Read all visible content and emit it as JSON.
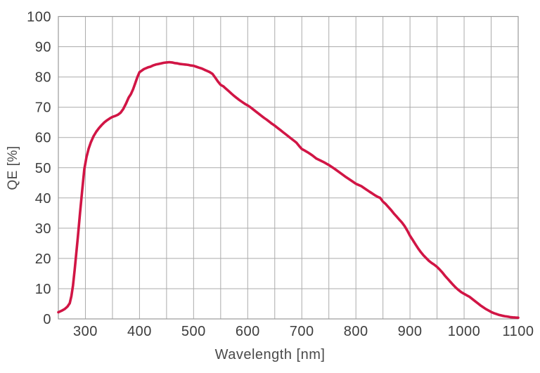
{
  "chart_data": {
    "type": "line",
    "title": "",
    "xlabel": "Wavelength [nm]",
    "ylabel": "QE [%]",
    "xlim": [
      250,
      1100
    ],
    "ylim": [
      0,
      100
    ],
    "x_tick_labels": [
      300,
      400,
      500,
      600,
      700,
      800,
      900,
      1000,
      1100
    ],
    "x_minor_grid_step": 50,
    "y_tick_labels": [
      0,
      10,
      20,
      30,
      40,
      50,
      60,
      70,
      80,
      90,
      100
    ],
    "grid": "vertical every 50 nm, horizontal every 10 %",
    "legend": "none",
    "colors": {
      "line": "#d11545",
      "grid": "#ababab",
      "border": "#9a9a9a",
      "tick_text": "#3d3d3d"
    },
    "series": [
      {
        "name": "QE",
        "points": [
          [
            250,
            2.2
          ],
          [
            256,
            2.7
          ],
          [
            262,
            3.3
          ],
          [
            267,
            4.1
          ],
          [
            271,
            5.2
          ],
          [
            274,
            7.5
          ],
          [
            277,
            11
          ],
          [
            280,
            16
          ],
          [
            283,
            21.5
          ],
          [
            286,
            27
          ],
          [
            290,
            35
          ],
          [
            294,
            42.5
          ],
          [
            298,
            49.5
          ],
          [
            302,
            53.5
          ],
          [
            306,
            56.3
          ],
          [
            310,
            58.4
          ],
          [
            315,
            60.4
          ],
          [
            320,
            61.9
          ],
          [
            325,
            63.1
          ],
          [
            330,
            64.1
          ],
          [
            335,
            65.0
          ],
          [
            340,
            65.7
          ],
          [
            345,
            66.3
          ],
          [
            350,
            66.8
          ],
          [
            355,
            67.1
          ],
          [
            360,
            67.5
          ],
          [
            365,
            68.2
          ],
          [
            370,
            69.4
          ],
          [
            375,
            71.2
          ],
          [
            380,
            73.2
          ],
          [
            384,
            74.3
          ],
          [
            388,
            75.9
          ],
          [
            392,
            77.9
          ],
          [
            396,
            79.9
          ],
          [
            400,
            81.6
          ],
          [
            404,
            82.1
          ],
          [
            408,
            82.6
          ],
          [
            412,
            82.9
          ],
          [
            416,
            83.2
          ],
          [
            420,
            83.4
          ],
          [
            425,
            83.8
          ],
          [
            430,
            84.1
          ],
          [
            435,
            84.3
          ],
          [
            440,
            84.5
          ],
          [
            445,
            84.7
          ],
          [
            450,
            84.8
          ],
          [
            455,
            84.9
          ],
          [
            460,
            84.8
          ],
          [
            465,
            84.6
          ],
          [
            470,
            84.5
          ],
          [
            475,
            84.3
          ],
          [
            480,
            84.2
          ],
          [
            485,
            84.1
          ],
          [
            490,
            84.0
          ],
          [
            495,
            83.8
          ],
          [
            500,
            83.7
          ],
          [
            505,
            83.4
          ],
          [
            510,
            83.1
          ],
          [
            515,
            82.8
          ],
          [
            520,
            82.4
          ],
          [
            525,
            82.0
          ],
          [
            530,
            81.6
          ],
          [
            535,
            81.0
          ],
          [
            540,
            79.8
          ],
          [
            545,
            78.5
          ],
          [
            550,
            77.4
          ],
          [
            555,
            76.9
          ],
          [
            560,
            76.1
          ],
          [
            565,
            75.3
          ],
          [
            570,
            74.5
          ],
          [
            575,
            73.7
          ],
          [
            580,
            73.0
          ],
          [
            585,
            72.3
          ],
          [
            590,
            71.7
          ],
          [
            595,
            71.1
          ],
          [
            600,
            70.6
          ],
          [
            605,
            70.0
          ],
          [
            610,
            69.3
          ],
          [
            615,
            68.6
          ],
          [
            620,
            67.9
          ],
          [
            625,
            67.2
          ],
          [
            630,
            66.5
          ],
          [
            635,
            65.9
          ],
          [
            640,
            65.2
          ],
          [
            645,
            64.5
          ],
          [
            650,
            63.9
          ],
          [
            655,
            63.2
          ],
          [
            660,
            62.5
          ],
          [
            665,
            61.8
          ],
          [
            670,
            61.1
          ],
          [
            675,
            60.4
          ],
          [
            680,
            59.7
          ],
          [
            685,
            59.0
          ],
          [
            690,
            58.3
          ],
          [
            695,
            57.2
          ],
          [
            700,
            56.2
          ],
          [
            705,
            55.7
          ],
          [
            710,
            55.2
          ],
          [
            715,
            54.6
          ],
          [
            720,
            54.0
          ],
          [
            727,
            53.0
          ],
          [
            735,
            52.3
          ],
          [
            740,
            51.9
          ],
          [
            750,
            50.9
          ],
          [
            755,
            50.3
          ],
          [
            760,
            49.7
          ],
          [
            770,
            48.4
          ],
          [
            780,
            47.1
          ],
          [
            790,
            45.9
          ],
          [
            800,
            44.7
          ],
          [
            805,
            44.3
          ],
          [
            810,
            43.9
          ],
          [
            815,
            43.3
          ],
          [
            820,
            42.7
          ],
          [
            825,
            42.1
          ],
          [
            830,
            41.5
          ],
          [
            835,
            40.9
          ],
          [
            840,
            40.4
          ],
          [
            845,
            40.0
          ],
          [
            850,
            38.8
          ],
          [
            855,
            38.0
          ],
          [
            860,
            37.0
          ],
          [
            865,
            36.0
          ],
          [
            870,
            34.9
          ],
          [
            875,
            33.9
          ],
          [
            880,
            32.9
          ],
          [
            885,
            31.9
          ],
          [
            890,
            30.7
          ],
          [
            895,
            29.2
          ],
          [
            900,
            27.5
          ],
          [
            905,
            26.1
          ],
          [
            910,
            24.7
          ],
          [
            915,
            23.3
          ],
          [
            920,
            22.1
          ],
          [
            925,
            21.0
          ],
          [
            930,
            20.1
          ],
          [
            935,
            19.2
          ],
          [
            940,
            18.5
          ],
          [
            945,
            17.9
          ],
          [
            950,
            17.2
          ],
          [
            955,
            16.3
          ],
          [
            960,
            15.3
          ],
          [
            965,
            14.2
          ],
          [
            970,
            13.2
          ],
          [
            975,
            12.2
          ],
          [
            980,
            11.2
          ],
          [
            985,
            10.3
          ],
          [
            990,
            9.5
          ],
          [
            995,
            8.8
          ],
          [
            1000,
            8.3
          ],
          [
            1005,
            7.8
          ],
          [
            1010,
            7.3
          ],
          [
            1015,
            6.6
          ],
          [
            1020,
            5.9
          ],
          [
            1025,
            5.2
          ],
          [
            1030,
            4.5
          ],
          [
            1035,
            3.9
          ],
          [
            1040,
            3.3
          ],
          [
            1045,
            2.8
          ],
          [
            1050,
            2.3
          ],
          [
            1055,
            1.9
          ],
          [
            1060,
            1.6
          ],
          [
            1065,
            1.3
          ],
          [
            1070,
            1.1
          ],
          [
            1075,
            0.9
          ],
          [
            1080,
            0.8
          ],
          [
            1085,
            0.6
          ],
          [
            1090,
            0.5
          ],
          [
            1095,
            0.45
          ],
          [
            1100,
            0.4
          ]
        ]
      }
    ]
  }
}
